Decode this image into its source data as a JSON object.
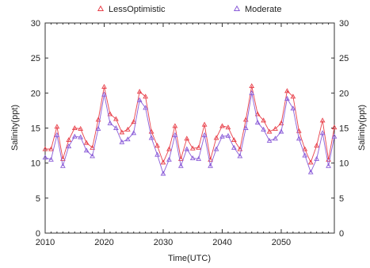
{
  "chart_data": {
    "type": "line",
    "title": "",
    "xlabel": "Time(UTC)",
    "ylabel": "Salinity(ppt)",
    "ylabel_right": "Salinity(ppt)",
    "xlim": [
      2010,
      2059
    ],
    "ylim": [
      0,
      30
    ],
    "xticks": [
      2010,
      2020,
      2030,
      2040,
      2050
    ],
    "yticks": [
      0,
      5,
      10,
      15,
      20,
      25,
      30
    ],
    "grid": false,
    "legend_position": "top",
    "x": [
      2010,
      2011,
      2012,
      2013,
      2014,
      2015,
      2016,
      2017,
      2018,
      2019,
      2020,
      2021,
      2022,
      2023,
      2024,
      2025,
      2026,
      2027,
      2028,
      2029,
      2030,
      2031,
      2032,
      2033,
      2034,
      2035,
      2036,
      2037,
      2038,
      2039,
      2040,
      2041,
      2042,
      2043,
      2044,
      2045,
      2046,
      2047,
      2048,
      2049,
      2050,
      2051,
      2052,
      2053,
      2054,
      2055,
      2056,
      2057,
      2058,
      2059
    ],
    "series": [
      {
        "name": "LessOptimistic",
        "color": "#e8404a",
        "marker": "triangle",
        "values": [
          12.0,
          12.0,
          15.2,
          10.6,
          13.3,
          15.0,
          14.9,
          12.9,
          12.2,
          16.2,
          20.9,
          17.0,
          16.3,
          14.4,
          14.8,
          15.9,
          20.2,
          19.5,
          14.5,
          12.5,
          10.1,
          12.0,
          15.3,
          10.6,
          13.5,
          12.1,
          12.2,
          15.5,
          10.5,
          13.6,
          15.3,
          15.1,
          13.3,
          12.0,
          16.2,
          21.0,
          17.0,
          16.1,
          14.5,
          14.9,
          15.7,
          20.3,
          19.5,
          14.6,
          12.0,
          10.1,
          12.5,
          16.1,
          10.5,
          15.1
        ]
      },
      {
        "name": "Moderate",
        "color": "#8a5cd8",
        "marker": "triangle",
        "values": [
          10.8,
          10.5,
          14.0,
          9.6,
          12.4,
          13.8,
          13.7,
          11.8,
          11.0,
          14.9,
          19.8,
          15.7,
          15.0,
          13.0,
          13.4,
          14.3,
          19.0,
          17.9,
          13.6,
          11.2,
          8.5,
          10.5,
          14.0,
          9.6,
          12.0,
          10.7,
          10.6,
          14.0,
          9.6,
          12.0,
          13.8,
          13.9,
          12.2,
          11.0,
          15.0,
          20.0,
          15.8,
          14.8,
          13.2,
          13.5,
          14.5,
          19.2,
          17.8,
          13.5,
          11.1,
          8.7,
          10.6,
          14.3,
          9.6,
          13.8
        ]
      }
    ]
  }
}
